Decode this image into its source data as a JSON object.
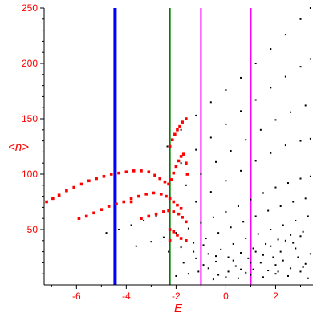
{
  "chart_data": {
    "type": "scatter",
    "title": "",
    "xlabel": "E",
    "ylabel": "<n>",
    "xlim": [
      -7.3,
      3.5
    ],
    "ylim": [
      0,
      250
    ],
    "grid": false,
    "xticks": [
      -6,
      -4,
      -2,
      0,
      2
    ],
    "yticks": [
      50,
      100,
      150,
      200,
      250
    ],
    "colors": {
      "label": "#ff0000",
      "axis": "#000000",
      "red_points": "#ff0000",
      "black_points": "#000000",
      "blue_line": "#0000ff",
      "green_line": "#008000",
      "magenta_line": "#ff00ff"
    },
    "vertical_lines": [
      {
        "x": -4.45,
        "color": "#0000ff",
        "width": "thick"
      },
      {
        "x": -2.25,
        "color": "#008000",
        "width": "thin"
      },
      {
        "x": -1.0,
        "color": "#ff00ff",
        "width": "thin"
      },
      {
        "x": 1.0,
        "color": "#ff00ff",
        "width": "thin"
      }
    ],
    "series": [
      {
        "color": "#ff0000",
        "values": [
          [
            -7.2,
            75
          ],
          [
            -6.95,
            78
          ],
          [
            -6.7,
            81
          ],
          [
            -6.4,
            85
          ],
          [
            -6.1,
            88
          ],
          [
            -5.8,
            91
          ],
          [
            -5.5,
            94
          ],
          [
            -5.2,
            96
          ],
          [
            -4.9,
            98
          ],
          [
            -4.6,
            100
          ],
          [
            -4.3,
            101
          ],
          [
            -4.0,
            102
          ],
          [
            -3.7,
            103
          ],
          [
            -3.4,
            103
          ],
          [
            -3.1,
            102
          ],
          [
            -2.85,
            99
          ],
          [
            -2.65,
            96
          ],
          [
            -2.45,
            93
          ],
          [
            -2.3,
            91
          ],
          [
            -2.2,
            95
          ],
          [
            -2.1,
            101
          ],
          [
            -2.0,
            107
          ],
          [
            -1.9,
            112
          ],
          [
            -1.8,
            116
          ],
          [
            -1.7,
            118
          ],
          [
            -1.6,
            110
          ],
          [
            -1.55,
            100
          ],
          [
            -2.25,
            125
          ],
          [
            -2.15,
            131
          ],
          [
            -2.05,
            136
          ],
          [
            -1.95,
            140
          ],
          [
            -1.85,
            143
          ],
          [
            -1.75,
            147
          ],
          [
            -1.6,
            150
          ],
          [
            -5.9,
            60
          ],
          [
            -5.6,
            62
          ],
          [
            -5.3,
            65
          ],
          [
            -5.0,
            68
          ],
          [
            -4.7,
            71
          ],
          [
            -4.4,
            73
          ],
          [
            -4.1,
            75
          ],
          [
            -3.8,
            78
          ],
          [
            -3.5,
            80
          ],
          [
            -3.2,
            82
          ],
          [
            -2.9,
            83
          ],
          [
            -2.6,
            82
          ],
          [
            -2.4,
            80
          ],
          [
            -2.25,
            78
          ],
          [
            -2.1,
            75
          ],
          [
            -1.95,
            72
          ],
          [
            -1.8,
            69
          ],
          [
            -3.4,
            60
          ],
          [
            -3.1,
            62
          ],
          [
            -2.8,
            64
          ],
          [
            -2.5,
            66
          ],
          [
            -2.3,
            67
          ],
          [
            -2.1,
            66
          ],
          [
            -1.9,
            64
          ],
          [
            -1.75,
            61
          ],
          [
            -1.6,
            57
          ],
          [
            -2.25,
            50
          ],
          [
            -2.1,
            48
          ],
          [
            -1.95,
            45
          ],
          [
            -1.8,
            42
          ],
          [
            -1.6,
            40
          ],
          [
            -2.25,
            40
          ],
          [
            -3.8,
            75
          ]
        ]
      },
      {
        "color": "#000000",
        "values": [
          [
            -2.35,
            125
          ],
          [
            -1.8,
            140
          ],
          [
            -1.2,
            153
          ],
          [
            -0.6,
            165
          ],
          [
            0.0,
            176
          ],
          [
            0.6,
            187
          ],
          [
            1.2,
            200
          ],
          [
            1.8,
            213
          ],
          [
            2.4,
            226
          ],
          [
            3.0,
            240
          ],
          [
            3.4,
            250
          ],
          [
            -1.8,
            110
          ],
          [
            -1.2,
            122
          ],
          [
            -0.6,
            133
          ],
          [
            0.0,
            145
          ],
          [
            0.6,
            157
          ],
          [
            1.2,
            167
          ],
          [
            1.8,
            178
          ],
          [
            2.4,
            188
          ],
          [
            3.0,
            197
          ],
          [
            3.4,
            204
          ],
          [
            -1.6,
            90
          ],
          [
            -1.0,
            100
          ],
          [
            -0.4,
            111
          ],
          [
            0.2,
            121
          ],
          [
            0.8,
            131
          ],
          [
            1.4,
            140
          ],
          [
            2.0,
            149
          ],
          [
            2.6,
            156
          ],
          [
            3.2,
            162
          ],
          [
            -1.2,
            75
          ],
          [
            -0.6,
            84
          ],
          [
            0.0,
            94
          ],
          [
            0.6,
            103
          ],
          [
            1.2,
            112
          ],
          [
            1.8,
            119
          ],
          [
            2.4,
            126
          ],
          [
            3.0,
            130
          ],
          [
            3.4,
            132
          ],
          [
            -4.8,
            47
          ],
          [
            -4.3,
            50
          ],
          [
            -3.8,
            54
          ],
          [
            -3.3,
            58
          ],
          [
            -2.8,
            62
          ],
          [
            -3.6,
            35
          ],
          [
            -3.0,
            39
          ],
          [
            -2.5,
            43
          ],
          [
            -2.0,
            47
          ],
          [
            -1.5,
            51
          ],
          [
            -1.0,
            56
          ],
          [
            -0.5,
            61
          ],
          [
            0.0,
            66
          ],
          [
            0.5,
            71
          ],
          [
            1.0,
            77
          ],
          [
            1.5,
            83
          ],
          [
            2.0,
            88
          ],
          [
            2.5,
            92
          ],
          [
            3.0,
            96
          ],
          [
            3.4,
            98
          ],
          [
            -2.3,
            30
          ],
          [
            -1.8,
            34
          ],
          [
            -1.3,
            38
          ],
          [
            -0.8,
            42
          ],
          [
            -0.3,
            47
          ],
          [
            0.2,
            52
          ],
          [
            0.7,
            57
          ],
          [
            1.2,
            62
          ],
          [
            1.7,
            67
          ],
          [
            2.2,
            71
          ],
          [
            2.7,
            75
          ],
          [
            3.2,
            78
          ],
          [
            -1.7,
            20
          ],
          [
            -1.2,
            24
          ],
          [
            -0.7,
            28
          ],
          [
            -0.2,
            32
          ],
          [
            0.3,
            37
          ],
          [
            0.8,
            42
          ],
          [
            1.3,
            46
          ],
          [
            1.8,
            50
          ],
          [
            2.3,
            54
          ],
          [
            2.8,
            58
          ],
          [
            3.3,
            62
          ],
          [
            -0.9,
            18
          ],
          [
            -0.4,
            21
          ],
          [
            0.1,
            25
          ],
          [
            0.6,
            29
          ],
          [
            1.1,
            33
          ],
          [
            1.6,
            37
          ],
          [
            2.1,
            41
          ],
          [
            2.6,
            45
          ],
          [
            3.1,
            48
          ],
          [
            -2.0,
            8
          ],
          [
            -1.5,
            10
          ],
          [
            -1.1,
            12
          ],
          [
            -0.7,
            15
          ],
          [
            -0.3,
            9
          ],
          [
            0.1,
            12
          ],
          [
            0.4,
            17
          ],
          [
            0.8,
            11
          ],
          [
            1.1,
            14
          ],
          [
            1.4,
            20
          ],
          [
            1.7,
            13
          ],
          [
            2.0,
            18
          ],
          [
            2.3,
            22
          ],
          [
            2.6,
            15
          ],
          [
            2.9,
            25
          ],
          [
            3.2,
            19
          ],
          [
            3.4,
            28
          ],
          [
            -0.5,
            5
          ],
          [
            0.0,
            7
          ],
          [
            0.5,
            6
          ],
          [
            1.0,
            9
          ],
          [
            1.5,
            7
          ],
          [
            2.0,
            10
          ],
          [
            2.5,
            8
          ],
          [
            3.0,
            12
          ],
          [
            3.3,
            6
          ],
          [
            0.3,
            22
          ],
          [
            0.9,
            24
          ],
          [
            1.5,
            27
          ],
          [
            2.2,
            30
          ],
          [
            2.8,
            33
          ],
          [
            1.2,
            30
          ],
          [
            1.8,
            35
          ],
          [
            2.4,
            40
          ],
          [
            3.0,
            44
          ],
          [
            1.0,
            20
          ],
          [
            1.9,
            25
          ],
          [
            2.7,
            38
          ],
          [
            0.6,
            14
          ],
          [
            2.1,
            12
          ],
          [
            3.1,
            16
          ],
          [
            -1.3,
            30
          ],
          [
            -0.9,
            36
          ],
          [
            -0.4,
            26
          ]
        ]
      }
    ]
  }
}
